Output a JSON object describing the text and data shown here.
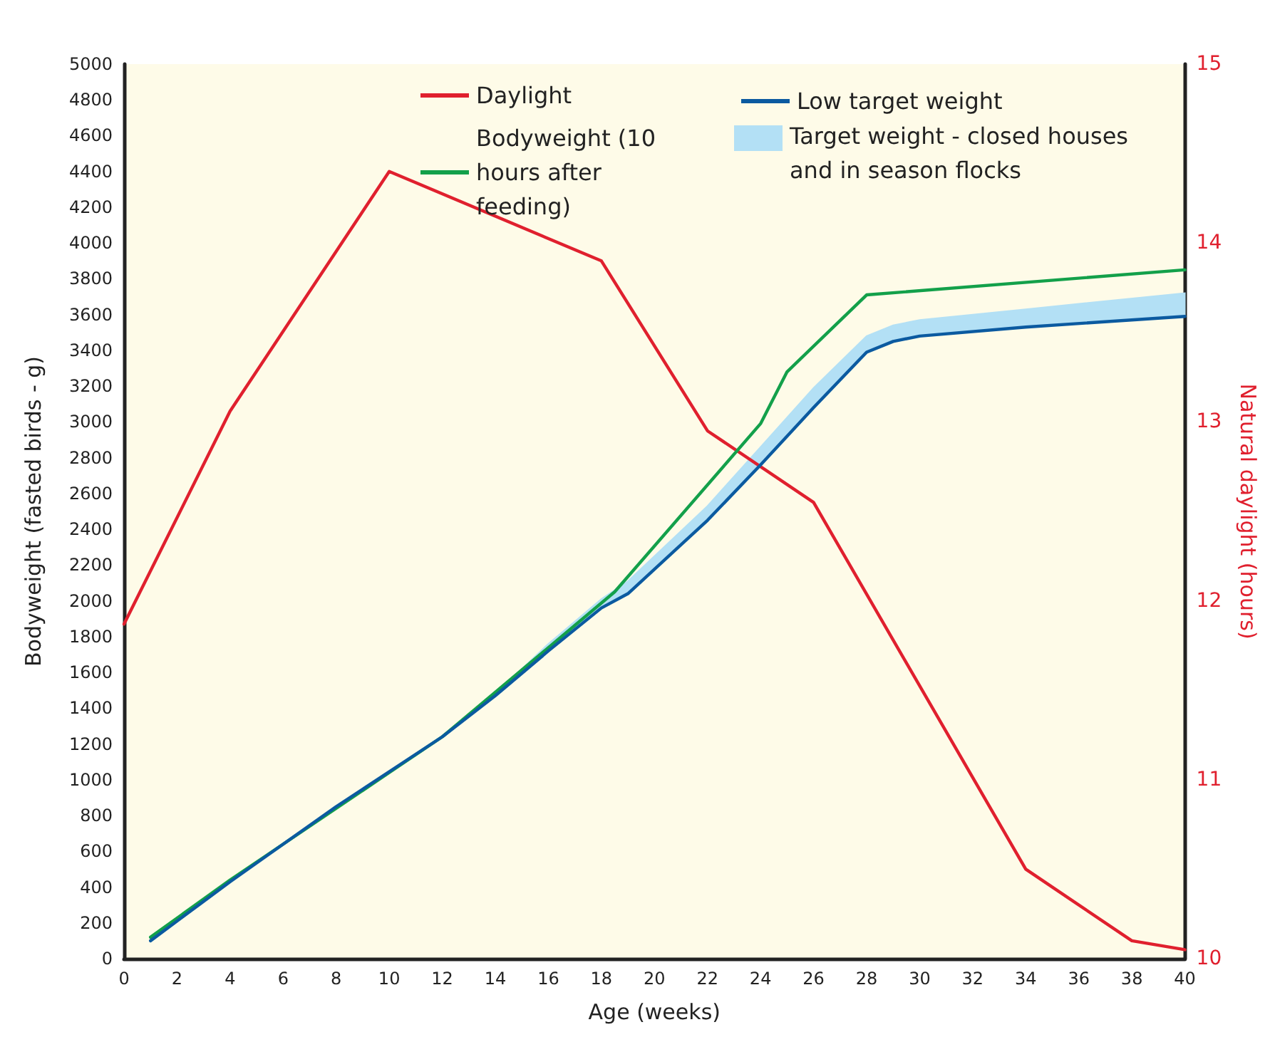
{
  "chart_data": {
    "type": "line",
    "xlabel": "Age (weeks)",
    "ylabel": "Bodyweight (fasted birds - g)",
    "y2label": "Natural daylight (hours)",
    "xlim": [
      0,
      40
    ],
    "xticks": [
      0,
      2,
      4,
      6,
      8,
      10,
      12,
      14,
      16,
      18,
      20,
      22,
      24,
      26,
      28,
      30,
      32,
      34,
      36,
      38,
      40
    ],
    "ylim": [
      0,
      5000
    ],
    "yticks": [
      0,
      200,
      400,
      600,
      800,
      1000,
      1200,
      1400,
      1600,
      1800,
      2000,
      2200,
      2400,
      2600,
      2800,
      3000,
      3200,
      3400,
      3600,
      3800,
      4000,
      4200,
      4400,
      4600,
      4800,
      5000
    ],
    "y2lim": [
      10,
      15
    ],
    "y2ticks": [
      10,
      11,
      12,
      13,
      14,
      15
    ],
    "grid": false,
    "legend": "top",
    "marker": "none",
    "line_style": "solid",
    "annotations": [
      "Target weight - closed houses and in season flocks"
    ],
    "series": [
      {
        "name": "Daylight",
        "color": "#e0202e",
        "axis": "y2",
        "x": [
          0,
          4,
          10,
          18,
          22,
          26,
          34,
          38,
          40
        ],
        "values": [
          11.87,
          13.06,
          14.4,
          13.9,
          12.95,
          12.55,
          10.5,
          10.1,
          10.05
        ]
      },
      {
        "name": "Bodyweight (10 hours after feeding)",
        "color": "#13a04a",
        "x": [
          1,
          4,
          8,
          10,
          12,
          18.5,
          24,
          25,
          28,
          40
        ],
        "values": [
          120,
          440,
          840,
          1040,
          1240,
          2050,
          2990,
          3280,
          3710,
          3850
        ]
      },
      {
        "name": "Low target weight",
        "color": "#0b5aa0",
        "x": [
          1,
          4,
          8,
          12,
          14,
          16,
          18,
          19,
          22,
          24,
          26,
          28,
          29,
          30,
          34,
          40
        ],
        "values": [
          100,
          430,
          850,
          1240,
          1470,
          1720,
          1960,
          2040,
          2450,
          2760,
          3080,
          3390,
          3450,
          3480,
          3530,
          3590
        ],
        "lower": [
          null,
          null,
          null,
          1240,
          1470,
          1720,
          1960,
          2040,
          2450,
          2760,
          3080,
          3390,
          3450,
          3480,
          3530,
          3590
        ],
        "upper": [
          null,
          null,
          null,
          1240,
          1480,
          1760,
          2010,
          2110,
          2530,
          2860,
          3190,
          3480,
          3540,
          3570,
          3630,
          3720
        ]
      }
    ]
  }
}
